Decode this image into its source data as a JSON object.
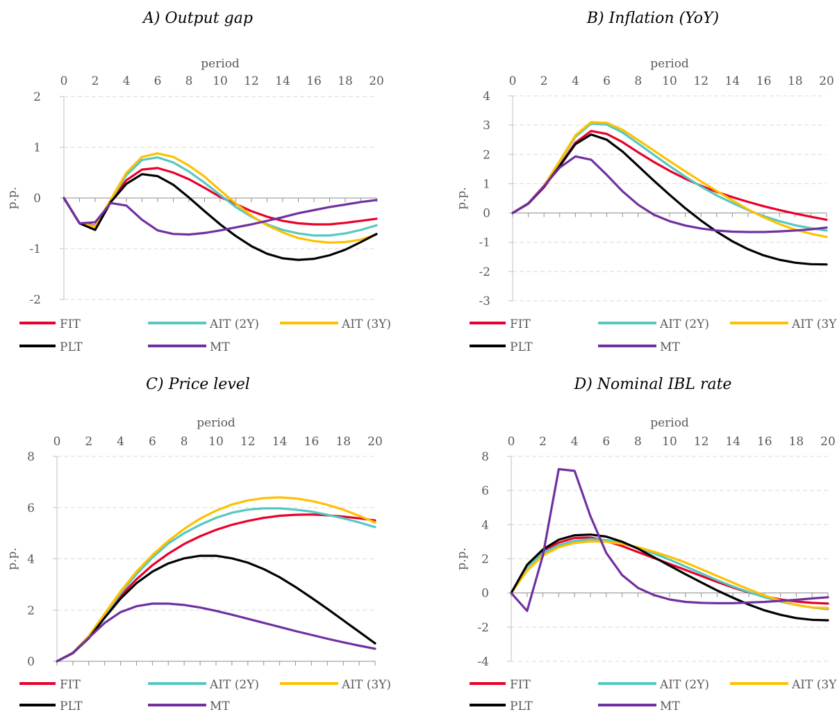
{
  "series_colors": {
    "FIT": "#e8002a",
    "AIT (2Y)": "#55c8c2",
    "AIT (3Y)": "#ffc000",
    "PLT": "#000000",
    "MT": "#7030a0"
  },
  "legend_order": [
    "FIT",
    "AIT (2Y)",
    "AIT (3Y)",
    "PLT",
    "MT"
  ],
  "chart_data": [
    {
      "type": "line",
      "title": "A) Output gap",
      "xlabel": "period",
      "ylabel": "p.p.",
      "x": [
        0,
        1,
        2,
        3,
        4,
        5,
        6,
        7,
        8,
        9,
        10,
        11,
        12,
        13,
        14,
        15,
        16,
        17,
        18,
        19,
        20
      ],
      "xticks": [
        0,
        2,
        4,
        6,
        8,
        10,
        12,
        14,
        16,
        18,
        20
      ],
      "ylim": [
        -2,
        2
      ],
      "yticks": [
        -2,
        -1,
        0,
        1,
        2
      ],
      "ytick_labels": [
        "-2",
        "-1",
        "0",
        "1",
        "2"
      ],
      "grid": true,
      "legend_position": "bottom",
      "series": [
        {
          "name": "FIT",
          "values": [
            0,
            -0.5,
            -0.55,
            -0.05,
            0.35,
            0.56,
            0.59,
            0.5,
            0.37,
            0.2,
            0.02,
            -0.12,
            -0.26,
            -0.37,
            -0.45,
            -0.5,
            -0.52,
            -0.52,
            -0.49,
            -0.45,
            -0.41
          ]
        },
        {
          "name": "AIT (2Y)",
          "values": [
            0,
            -0.5,
            -0.56,
            -0.04,
            0.45,
            0.75,
            0.8,
            0.7,
            0.52,
            0.3,
            0.06,
            -0.18,
            -0.37,
            -0.52,
            -0.63,
            -0.7,
            -0.74,
            -0.74,
            -0.7,
            -0.63,
            -0.54
          ]
        },
        {
          "name": "AIT (3Y)",
          "values": [
            0,
            -0.5,
            -0.57,
            -0.03,
            0.5,
            0.81,
            0.88,
            0.81,
            0.64,
            0.42,
            0.15,
            -0.11,
            -0.35,
            -0.54,
            -0.68,
            -0.79,
            -0.85,
            -0.88,
            -0.87,
            -0.82,
            -0.72
          ]
        },
        {
          "name": "PLT",
          "values": [
            0,
            -0.5,
            -0.63,
            -0.08,
            0.28,
            0.47,
            0.43,
            0.26,
            0.01,
            -0.26,
            -0.52,
            -0.75,
            -0.95,
            -1.1,
            -1.19,
            -1.22,
            -1.2,
            -1.13,
            -1.02,
            -0.87,
            -0.71
          ]
        },
        {
          "name": "MT",
          "values": [
            0,
            -0.5,
            -0.48,
            -0.1,
            -0.15,
            -0.43,
            -0.64,
            -0.71,
            -0.72,
            -0.69,
            -0.64,
            -0.58,
            -0.52,
            -0.45,
            -0.38,
            -0.3,
            -0.24,
            -0.18,
            -0.13,
            -0.08,
            -0.04
          ]
        }
      ]
    },
    {
      "type": "line",
      "title": "B) Inflation (YoY)",
      "xlabel": "period",
      "ylabel": "p.p.",
      "x": [
        0,
        1,
        2,
        3,
        4,
        5,
        6,
        7,
        8,
        9,
        10,
        11,
        12,
        13,
        14,
        15,
        16,
        17,
        18,
        19,
        20
      ],
      "xticks": [
        0,
        2,
        4,
        6,
        8,
        10,
        12,
        14,
        16,
        18,
        20
      ],
      "ylim": [
        -3,
        4
      ],
      "yticks": [
        -3,
        -2,
        -1,
        0,
        1,
        2,
        3,
        4
      ],
      "ytick_labels": [
        "-3",
        "-2",
        "-1",
        "0",
        "1",
        "2",
        "3",
        "4"
      ],
      "grid": true,
      "legend_position": "bottom",
      "series": [
        {
          "name": "FIT",
          "values": [
            0,
            0.32,
            0.88,
            1.62,
            2.4,
            2.8,
            2.7,
            2.42,
            2.07,
            1.74,
            1.44,
            1.17,
            0.93,
            0.72,
            0.54,
            0.38,
            0.23,
            0.1,
            -0.02,
            -0.13,
            -0.23
          ]
        },
        {
          "name": "AIT (2Y)",
          "values": [
            0,
            0.33,
            0.92,
            1.75,
            2.6,
            3.05,
            3.02,
            2.75,
            2.37,
            1.98,
            1.6,
            1.24,
            0.9,
            0.6,
            0.34,
            0.1,
            -0.11,
            -0.28,
            -0.42,
            -0.52,
            -0.6
          ]
        },
        {
          "name": "AIT (3Y)",
          "values": [
            0,
            0.33,
            0.93,
            1.78,
            2.65,
            3.1,
            3.08,
            2.84,
            2.49,
            2.13,
            1.77,
            1.42,
            1.08,
            0.75,
            0.43,
            0.12,
            -0.15,
            -0.38,
            -0.57,
            -0.71,
            -0.82
          ]
        },
        {
          "name": "PLT",
          "values": [
            0,
            0.32,
            0.9,
            1.6,
            2.35,
            2.68,
            2.5,
            2.1,
            1.6,
            1.1,
            0.62,
            0.16,
            -0.26,
            -0.64,
            -0.97,
            -1.24,
            -1.45,
            -1.6,
            -1.7,
            -1.75,
            -1.76
          ]
        },
        {
          "name": "MT",
          "values": [
            0,
            0.33,
            0.92,
            1.55,
            1.93,
            1.82,
            1.3,
            0.74,
            0.28,
            -0.06,
            -0.28,
            -0.43,
            -0.53,
            -0.6,
            -0.64,
            -0.65,
            -0.65,
            -0.63,
            -0.6,
            -0.56,
            -0.5
          ]
        }
      ]
    },
    {
      "type": "line",
      "title": "C) Price level",
      "xlabel": "period",
      "ylabel": "p.p.",
      "x": [
        0,
        1,
        2,
        3,
        4,
        5,
        6,
        7,
        8,
        9,
        10,
        11,
        12,
        13,
        14,
        15,
        16,
        17,
        18,
        19,
        20
      ],
      "xticks": [
        0,
        2,
        4,
        6,
        8,
        10,
        12,
        14,
        16,
        18,
        20
      ],
      "ylim": [
        0,
        8
      ],
      "yticks": [
        0,
        2,
        4,
        6,
        8
      ],
      "ytick_labels": [
        "0",
        "2",
        "4",
        "6",
        "8"
      ],
      "grid": true,
      "legend_position": "bottom",
      "series": [
        {
          "name": "FIT",
          "values": [
            0,
            0.32,
            0.95,
            1.75,
            2.55,
            3.2,
            3.75,
            4.2,
            4.58,
            4.88,
            5.13,
            5.33,
            5.48,
            5.6,
            5.68,
            5.72,
            5.73,
            5.7,
            5.65,
            5.58,
            5.5
          ]
        },
        {
          "name": "AIT (2Y)",
          "values": [
            0,
            0.33,
            0.98,
            1.82,
            2.65,
            3.4,
            4.05,
            4.6,
            5.0,
            5.33,
            5.6,
            5.8,
            5.92,
            5.97,
            5.97,
            5.92,
            5.84,
            5.72,
            5.58,
            5.42,
            5.24
          ]
        },
        {
          "name": "AIT (3Y)",
          "values": [
            0,
            0.33,
            0.99,
            1.86,
            2.73,
            3.5,
            4.15,
            4.7,
            5.17,
            5.57,
            5.88,
            6.12,
            6.28,
            6.37,
            6.4,
            6.36,
            6.26,
            6.11,
            5.92,
            5.68,
            5.42
          ]
        },
        {
          "name": "PLT",
          "values": [
            0,
            0.32,
            0.9,
            1.7,
            2.45,
            3.05,
            3.5,
            3.82,
            4.02,
            4.12,
            4.12,
            4.02,
            3.85,
            3.6,
            3.28,
            2.9,
            2.48,
            2.05,
            1.6,
            1.15,
            0.7
          ]
        },
        {
          "name": "MT",
          "values": [
            0,
            0.33,
            0.92,
            1.5,
            1.92,
            2.15,
            2.25,
            2.25,
            2.2,
            2.1,
            1.97,
            1.82,
            1.66,
            1.5,
            1.34,
            1.18,
            1.03,
            0.88,
            0.74,
            0.61,
            0.49
          ]
        }
      ]
    },
    {
      "type": "line",
      "title": "D) Nominal IBL rate",
      "xlabel": "period",
      "ylabel": "p.p.",
      "x": [
        0,
        1,
        2,
        3,
        4,
        5,
        6,
        7,
        8,
        9,
        10,
        11,
        12,
        13,
        14,
        15,
        16,
        17,
        18,
        19,
        20
      ],
      "xticks": [
        0,
        2,
        4,
        6,
        8,
        10,
        12,
        14,
        16,
        18,
        20
      ],
      "ylim": [
        -4,
        8
      ],
      "yticks": [
        -4,
        -2,
        0,
        2,
        4,
        6,
        8
      ],
      "ytick_labels": [
        "-4",
        "-2",
        "0",
        "2",
        "4",
        "6",
        "8"
      ],
      "grid": true,
      "legend_position": "bottom",
      "series": [
        {
          "name": "FIT",
          "values": [
            0,
            1.55,
            2.45,
            2.95,
            3.22,
            3.25,
            3.05,
            2.75,
            2.4,
            2.05,
            1.7,
            1.35,
            1.0,
            0.65,
            0.32,
            0.03,
            -0.2,
            -0.38,
            -0.5,
            -0.58,
            -0.62
          ]
        },
        {
          "name": "AIT (2Y)",
          "values": [
            0,
            1.5,
            2.35,
            2.8,
            3.05,
            3.15,
            3.1,
            2.92,
            2.65,
            2.32,
            1.95,
            1.55,
            1.15,
            0.75,
            0.38,
            0.05,
            -0.25,
            -0.5,
            -0.7,
            -0.85,
            -0.95
          ]
        },
        {
          "name": "AIT (3Y)",
          "values": [
            0,
            1.3,
            2.2,
            2.68,
            2.93,
            3.02,
            3.0,
            2.88,
            2.68,
            2.42,
            2.12,
            1.78,
            1.4,
            1.0,
            0.6,
            0.22,
            -0.15,
            -0.45,
            -0.7,
            -0.85,
            -0.88
          ]
        },
        {
          "name": "PLT",
          "values": [
            0,
            1.65,
            2.55,
            3.12,
            3.38,
            3.42,
            3.3,
            3.0,
            2.6,
            2.1,
            1.6,
            1.1,
            0.62,
            0.15,
            -0.28,
            -0.68,
            -1.02,
            -1.28,
            -1.47,
            -1.57,
            -1.6
          ]
        },
        {
          "name": "MT",
          "values": [
            0,
            -1.05,
            2.2,
            7.25,
            7.15,
            4.5,
            2.35,
            1.05,
            0.3,
            -0.12,
            -0.38,
            -0.52,
            -0.58,
            -0.6,
            -0.6,
            -0.56,
            -0.52,
            -0.46,
            -0.4,
            -0.32,
            -0.25
          ]
        }
      ]
    }
  ]
}
